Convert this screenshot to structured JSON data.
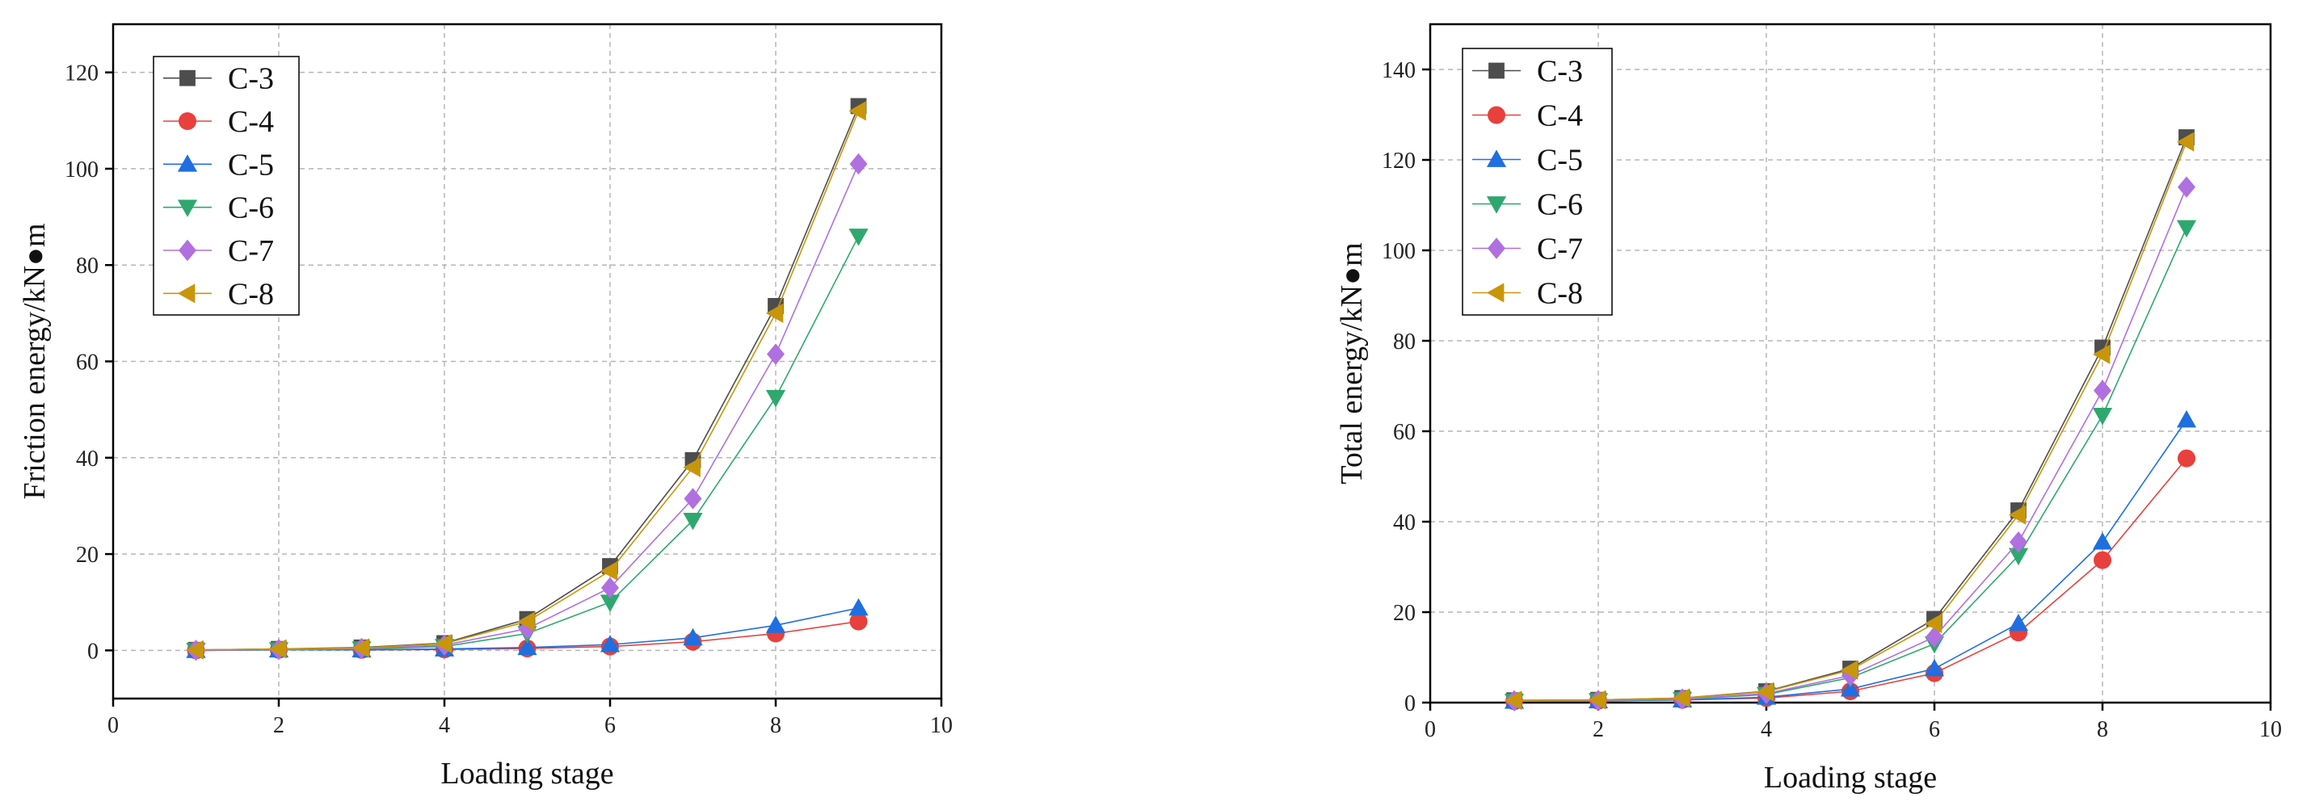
{
  "chart_data": [
    {
      "type": "line",
      "title": "",
      "xlabel": "Loading stage",
      "ylabel": "Friction energy/kN●m",
      "xlim": [
        0,
        10
      ],
      "ylim": [
        -10,
        130
      ],
      "xticks": [
        0,
        2,
        4,
        6,
        8,
        10
      ],
      "yticks": [
        0,
        20,
        40,
        60,
        80,
        100,
        120
      ],
      "grid": true,
      "legend_position": "top-left",
      "x": [
        1,
        2,
        3,
        4,
        5,
        6,
        7,
        8,
        9
      ],
      "series": [
        {
          "name": "C-3",
          "values": [
            0.1,
            0.3,
            0.6,
            1.5,
            6.5,
            17.5,
            39.5,
            71.5,
            113
          ],
          "color": "#4d4d4d",
          "marker": "square"
        },
        {
          "name": "C-4",
          "values": [
            0.0,
            0.1,
            0.1,
            0.2,
            0.4,
            0.8,
            1.8,
            3.5,
            6
          ],
          "color": "#e8403c",
          "marker": "circle"
        },
        {
          "name": "C-5",
          "values": [
            0.0,
            0.1,
            0.1,
            0.3,
            0.6,
            1.2,
            2.6,
            5.2,
            8.8
          ],
          "color": "#1f6fe0",
          "marker": "triangle-up"
        },
        {
          "name": "C-6",
          "values": [
            0.0,
            0.1,
            0.3,
            0.8,
            3.5,
            10,
            27,
            52.5,
            86
          ],
          "color": "#2ea86e",
          "marker": "triangle-down"
        },
        {
          "name": "C-7",
          "values": [
            0.0,
            0.2,
            0.4,
            1.1,
            4.5,
            13,
            31.5,
            61.5,
            101
          ],
          "color": "#b070e0",
          "marker": "diamond"
        },
        {
          "name": "C-8",
          "values": [
            0.1,
            0.3,
            0.5,
            1.4,
            6,
            16.5,
            38,
            70,
            112
          ],
          "color": "#c8960a",
          "marker": "triangle-left"
        }
      ]
    },
    {
      "type": "line",
      "title": "",
      "xlabel": "Loading stage",
      "ylabel": "Total energy/kN●m",
      "xlim": [
        0,
        10
      ],
      "ylim": [
        0,
        150
      ],
      "xticks": [
        0,
        2,
        4,
        6,
        8,
        10
      ],
      "yticks": [
        0,
        20,
        40,
        60,
        80,
        100,
        120,
        140
      ],
      "grid": true,
      "legend_position": "top-left",
      "x": [
        1,
        2,
        3,
        4,
        5,
        6,
        7,
        8,
        9
      ],
      "series": [
        {
          "name": "C-3",
          "values": [
            0.5,
            0.6,
            1,
            2.5,
            7.5,
            18.5,
            42.5,
            78.5,
            125
          ],
          "color": "#4d4d4d",
          "marker": "square"
        },
        {
          "name": "C-4",
          "values": [
            0.3,
            0.4,
            0.6,
            1,
            2.5,
            6.5,
            15.5,
            31.5,
            54
          ],
          "color": "#e8403c",
          "marker": "circle"
        },
        {
          "name": "C-5",
          "values": [
            0.3,
            0.4,
            0.6,
            1.2,
            3,
            7.5,
            17.5,
            35.5,
            62.5
          ],
          "color": "#1f6fe0",
          "marker": "triangle-up"
        },
        {
          "name": "C-6",
          "values": [
            0.3,
            0.4,
            0.7,
            1.8,
            5.5,
            13,
            32.5,
            63.5,
            105
          ],
          "color": "#2ea86e",
          "marker": "triangle-down"
        },
        {
          "name": "C-7",
          "values": [
            0.4,
            0.5,
            0.8,
            2,
            6,
            14.5,
            35.5,
            69,
            114
          ],
          "color": "#b070e0",
          "marker": "diamond"
        },
        {
          "name": "C-8",
          "values": [
            0.5,
            0.6,
            1,
            2.4,
            7.2,
            17.5,
            41.5,
            77,
            124
          ],
          "color": "#c8960a",
          "marker": "triangle-left"
        }
      ]
    }
  ]
}
